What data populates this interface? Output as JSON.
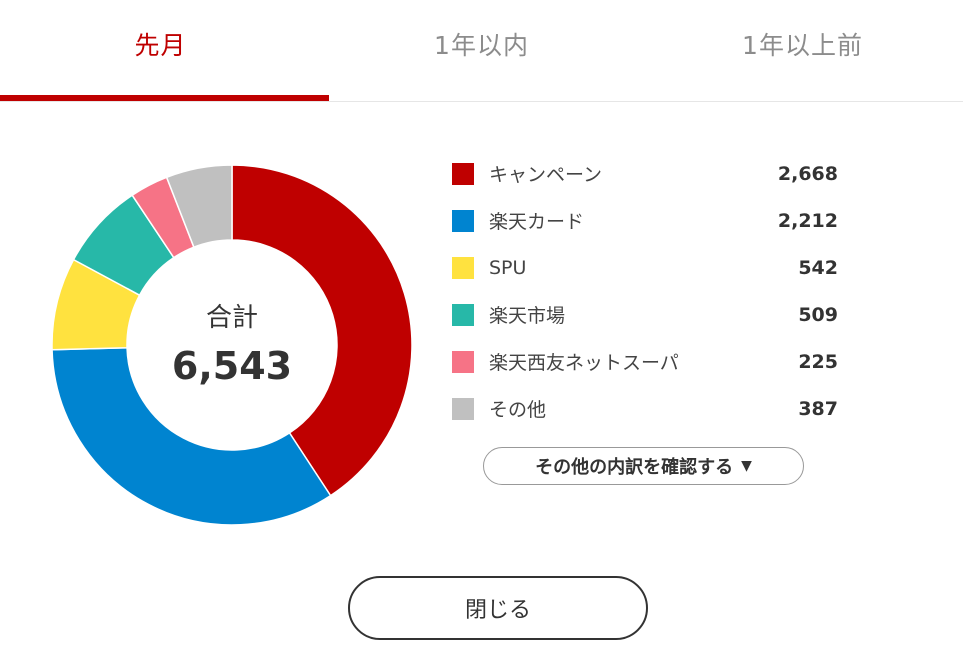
{
  "tabs": [
    {
      "label": "先月",
      "active": true
    },
    {
      "label": "1年以内",
      "active": false
    },
    {
      "label": "1年以上前",
      "active": false
    }
  ],
  "colors": {
    "accent": "#bf0000",
    "divider": "#e6e6e6"
  },
  "center": {
    "label": "合計",
    "value": "6,543"
  },
  "chart_data": {
    "type": "pie",
    "donut": true,
    "total": 6543,
    "series": [
      {
        "name": "キャンペーン",
        "value": 2668,
        "value_text": "2,668",
        "color": "#bf0000"
      },
      {
        "name": "楽天カード",
        "value": 2212,
        "value_text": "2,212",
        "color": "#0084d0"
      },
      {
        "name": "SPU",
        "value": 542,
        "value_text": "542",
        "color": "#ffe23f"
      },
      {
        "name": "楽天市場",
        "value": 509,
        "value_text": "509",
        "color": "#27b8a8"
      },
      {
        "name": "楽天西友ネットスーパ",
        "value": 225,
        "value_text": "225",
        "color": "#f67386"
      },
      {
        "name": "その他",
        "value": 387,
        "value_text": "387",
        "color": "#c0c0c0"
      }
    ]
  },
  "breakdown_button": {
    "label": "その他の内訳を確認する",
    "caret": "▼"
  },
  "close_button": {
    "label": "閉じる"
  }
}
